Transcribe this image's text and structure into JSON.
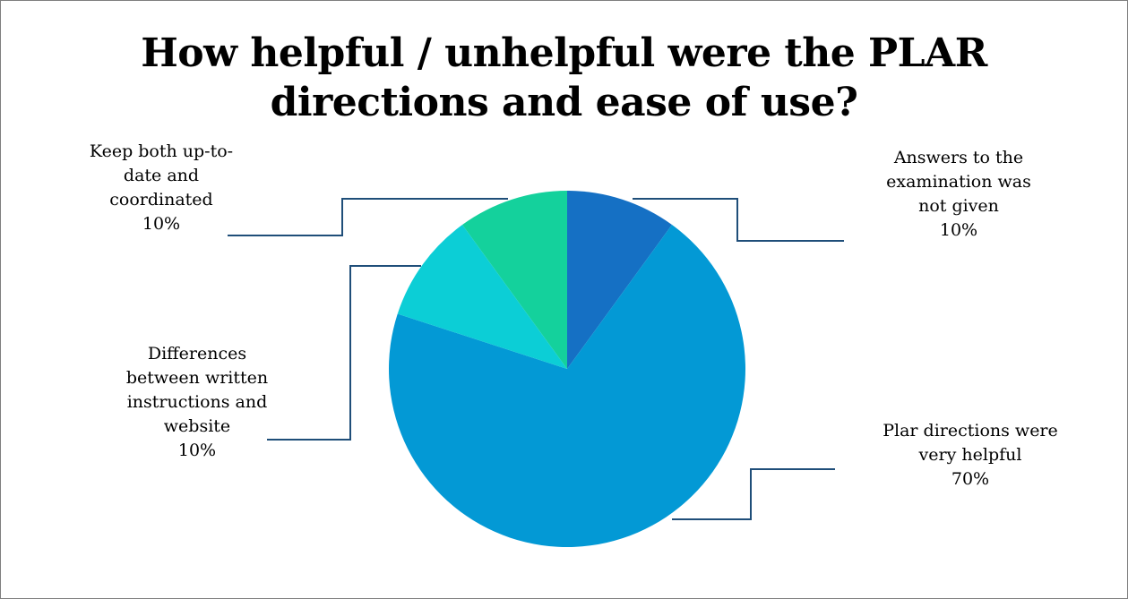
{
  "chart_data": {
    "type": "pie",
    "title_lines": [
      "How helpful / unhelpful were the PLAR",
      "directions and ease of use?"
    ],
    "slices": [
      {
        "name": "Answers to the examination was not given",
        "label_lines": [
          "Answers to the",
          "examination was",
          "not given"
        ],
        "value": 10,
        "value_label": "10%",
        "color": "#1570c4"
      },
      {
        "name": "Plar directions were very helpful",
        "label_lines": [
          "Plar directions were",
          "very helpful"
        ],
        "value": 70,
        "value_label": "70%",
        "color": "#0399d5"
      },
      {
        "name": "Differences between written instructions and website",
        "label_lines": [
          "Differences",
          "between written",
          "instructions and",
          "website"
        ],
        "value": 10,
        "value_label": "10%",
        "color": "#0cced6"
      },
      {
        "name": "Keep both up-to-date and coordinated",
        "label_lines": [
          "Keep both up-to-",
          "date and",
          "coordinated"
        ],
        "value": 10,
        "value_label": "10%",
        "color": "#14d19c"
      }
    ],
    "leader_line_color": "#1f4e79",
    "legend": "none"
  }
}
